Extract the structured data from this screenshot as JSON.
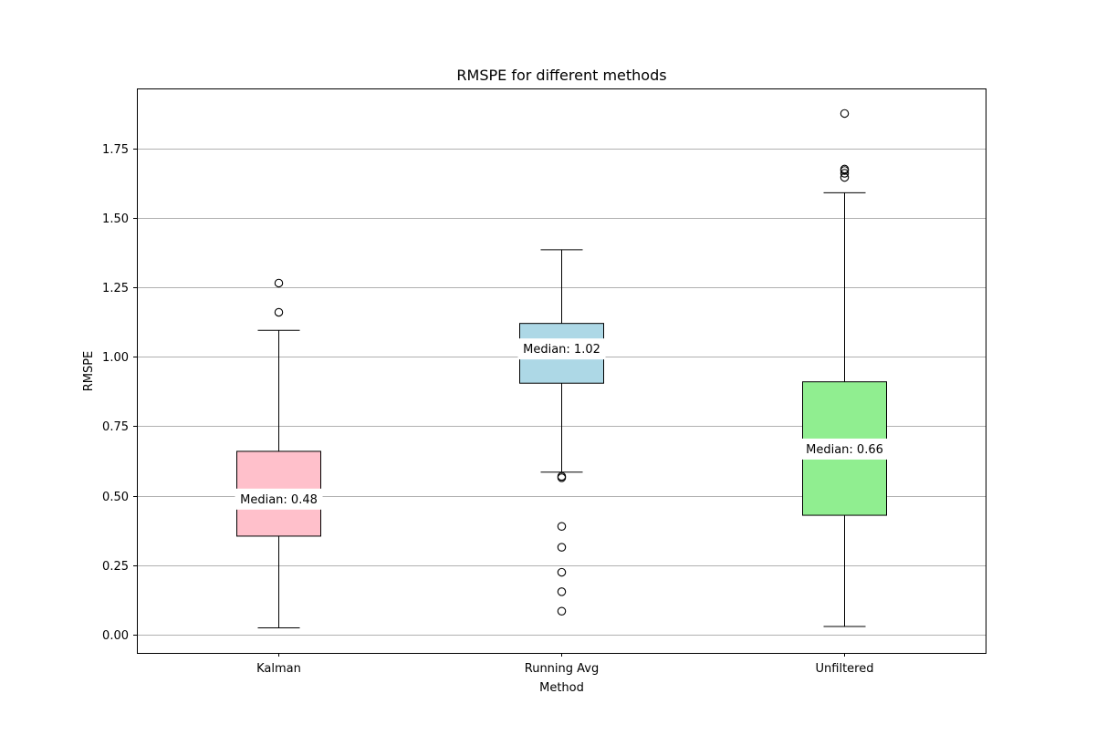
{
  "chart_data": {
    "type": "box",
    "title": "RMSPE for different methods",
    "xlabel": "Method",
    "ylabel": "RMSPE",
    "ylim": [
      -0.065,
      1.965
    ],
    "yticks": [
      0.0,
      0.25,
      0.5,
      0.75,
      1.0,
      1.25,
      1.5,
      1.75
    ],
    "ytick_labels": [
      "0.00",
      "0.25",
      "0.50",
      "0.75",
      "1.00",
      "1.25",
      "1.50",
      "1.75"
    ],
    "grid": "y",
    "categories": [
      "Kalman",
      "Running Avg",
      "Unfiltered"
    ],
    "boxes": [
      {
        "category": "Kalman",
        "color": "#ffc0cb",
        "whisker_low": 0.025,
        "q1": 0.355,
        "median": 0.48,
        "q3": 0.66,
        "whisker_high": 1.095,
        "outliers": [
          1.16,
          1.265
        ],
        "median_label": "Median: 0.48"
      },
      {
        "category": "Running Avg",
        "color": "#add8e6",
        "whisker_low": 0.585,
        "q1": 0.905,
        "median": 1.02,
        "q3": 1.12,
        "whisker_high": 1.385,
        "outliers": [
          0.085,
          0.155,
          0.225,
          0.315,
          0.39,
          0.565,
          0.57
        ],
        "median_label": "Median: 1.02"
      },
      {
        "category": "Unfiltered",
        "color": "#90ee90",
        "whisker_low": 0.03,
        "q1": 0.43,
        "median": 0.66,
        "q3": 0.91,
        "whisker_high": 1.59,
        "outliers": [
          1.645,
          1.66,
          1.67,
          1.675,
          1.875
        ],
        "median_label": "Median: 0.66"
      }
    ]
  }
}
